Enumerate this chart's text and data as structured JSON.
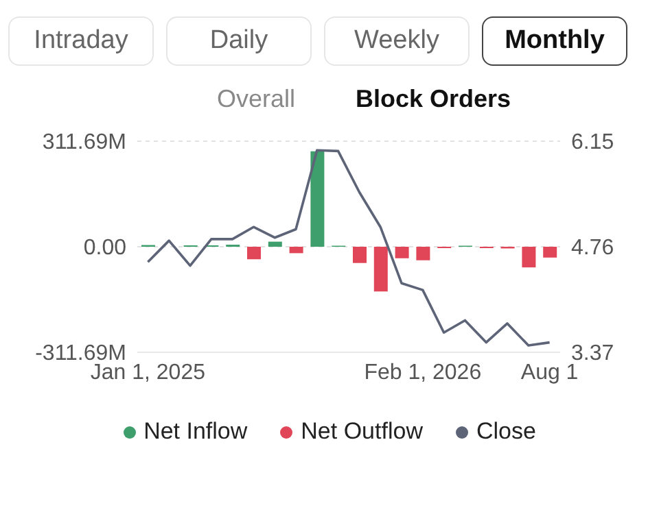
{
  "chart_data": {
    "type": "bar",
    "stacked": true,
    "annotations": [
      "Intraday",
      "Daily",
      "Weekly",
      "Monthly",
      "Overall",
      "Block Orders"
    ],
    "categories": [
      "Jan 1, 2025",
      null,
      null,
      null,
      null,
      null,
      null,
      null,
      null,
      null,
      null,
      null,
      null,
      "Feb 1, 2026",
      null,
      null,
      null,
      null,
      null,
      "Aug 1"
    ],
    "series": [
      {
        "name": "Net Inflow",
        "color": "#3e9e6c",
        "values": [
          5,
          null,
          4,
          4,
          6,
          null,
          15,
          null,
          282,
          3,
          null,
          null,
          null,
          null,
          null,
          3,
          null,
          null,
          null,
          null
        ]
      },
      {
        "name": "Net Outflow",
        "color": "#e04658",
        "values": [
          null,
          null,
          null,
          null,
          null,
          -37,
          null,
          -19,
          null,
          null,
          -48,
          -132,
          -34,
          -40,
          -4,
          null,
          -4,
          -5,
          -61,
          -32
        ]
      },
      {
        "name": "Close",
        "type": "line",
        "axis": "y2",
        "color": "#5d6478",
        "values": [
          4.56,
          4.84,
          4.51,
          4.86,
          4.86,
          5.02,
          4.88,
          4.99,
          6.03,
          6.02,
          5.48,
          5.02,
          4.28,
          4.19,
          3.63,
          3.79,
          3.5,
          3.75,
          3.46,
          3.5
        ]
      }
    ],
    "ylim": [
      -311.69,
      311.69
    ],
    "yticks": [
      {
        "value": -311.69,
        "label": "-311.69M"
      },
      {
        "value": 0,
        "label": "0.00"
      },
      {
        "value": 311.69,
        "label": "311.69M"
      }
    ],
    "y2lim": [
      3.37,
      6.15
    ],
    "y2ticks": [
      3.37,
      4.76,
      6.15
    ],
    "grid": "y",
    "legend": "bottom",
    "marker": "none"
  }
}
